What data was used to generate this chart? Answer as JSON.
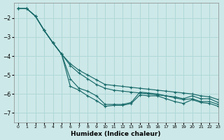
{
  "xlabel": "Humidex (Indice chaleur)",
  "background_color": "#cde8e8",
  "grid_color": "#b0d8d8",
  "line_color": "#1a6b6b",
  "xlim": [
    -0.5,
    23
  ],
  "ylim": [
    -7.5,
    -1.2
  ],
  "yticks": [
    -2,
    -3,
    -4,
    -5,
    -6,
    -7
  ],
  "xticks": [
    0,
    1,
    2,
    3,
    4,
    5,
    6,
    7,
    8,
    9,
    10,
    11,
    12,
    13,
    14,
    15,
    16,
    17,
    18,
    19,
    20,
    21,
    22,
    23
  ],
  "x": [
    0,
    1,
    2,
    3,
    4,
    5,
    6,
    7,
    8,
    9,
    10,
    11,
    12,
    13,
    14,
    15,
    16,
    17,
    18,
    19,
    20,
    21,
    22,
    23
  ],
  "series": [
    [
      -1.5,
      -1.5,
      -1.9,
      -2.65,
      -3.3,
      -3.9,
      -4.4,
      -4.75,
      -5.0,
      -5.25,
      -5.5,
      -5.55,
      -5.6,
      -5.65,
      -5.7,
      -5.75,
      -5.8,
      -5.85,
      -5.9,
      -5.95,
      -6.0,
      -6.1,
      -6.15,
      -6.3
    ],
    [
      -1.5,
      -1.5,
      -1.9,
      -2.65,
      -3.3,
      -3.9,
      -4.5,
      -4.9,
      -5.2,
      -5.5,
      -5.7,
      -5.8,
      -5.85,
      -5.9,
      -5.95,
      -6.0,
      -6.05,
      -6.1,
      -6.2,
      -6.3,
      -6.25,
      -6.4,
      -6.4,
      -6.55
    ],
    [
      -1.5,
      -1.5,
      -1.9,
      -2.65,
      -3.3,
      -3.9,
      -5.2,
      -5.7,
      -5.85,
      -6.1,
      -6.55,
      -6.55,
      -6.55,
      -6.45,
      -5.9,
      -5.95,
      -6.0,
      -6.1,
      -6.15,
      -6.25,
      -6.1,
      -6.25,
      -6.25,
      -6.45
    ],
    [
      -1.5,
      -1.5,
      -1.9,
      -2.65,
      -3.3,
      -3.9,
      -5.6,
      -5.8,
      -6.1,
      -6.35,
      -6.65,
      -6.6,
      -6.6,
      -6.5,
      -6.05,
      -6.1,
      -6.1,
      -6.25,
      -6.4,
      -6.5,
      -6.3,
      -6.45,
      -6.5,
      -6.65
    ]
  ]
}
